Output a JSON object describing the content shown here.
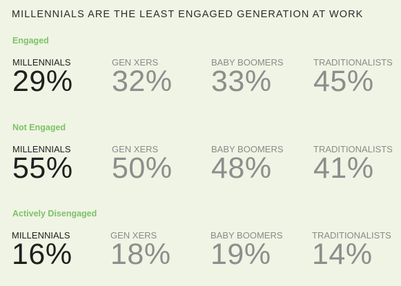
{
  "title": "MILLENNIALS ARE THE LEAST ENGAGED GENERATION AT WORK",
  "colors": {
    "background": "#f0f4e4",
    "section_label": "#7cc269",
    "highlight_text": "#1f1f1f",
    "muted_text": "#8d8d8d"
  },
  "generations": [
    "MILLENNIALS",
    "GEN XERS",
    "BABY BOOMERS",
    "TRADITIONALISTS"
  ],
  "sections": [
    {
      "label": "Engaged",
      "values": [
        "29%",
        "32%",
        "33%",
        "45%"
      ]
    },
    {
      "label": "Not Engaged",
      "values": [
        "55%",
        "50%",
        "48%",
        "41%"
      ]
    },
    {
      "label": "Actively Disengaged",
      "values": [
        "16%",
        "18%",
        "19%",
        "14%"
      ]
    }
  ],
  "chart_data": {
    "type": "table",
    "title": "MILLENNIALS ARE THE LEAST ENGAGED GENERATION AT WORK",
    "categories": [
      "MILLENNIALS",
      "GEN XERS",
      "BABY BOOMERS",
      "TRADITIONALISTS"
    ],
    "series": [
      {
        "name": "Engaged",
        "values": [
          29,
          32,
          33,
          45
        ]
      },
      {
        "name": "Not Engaged",
        "values": [
          55,
          50,
          48,
          41
        ]
      },
      {
        "name": "Actively Disengaged",
        "values": [
          16,
          18,
          19,
          14
        ]
      }
    ],
    "unit": "%"
  }
}
